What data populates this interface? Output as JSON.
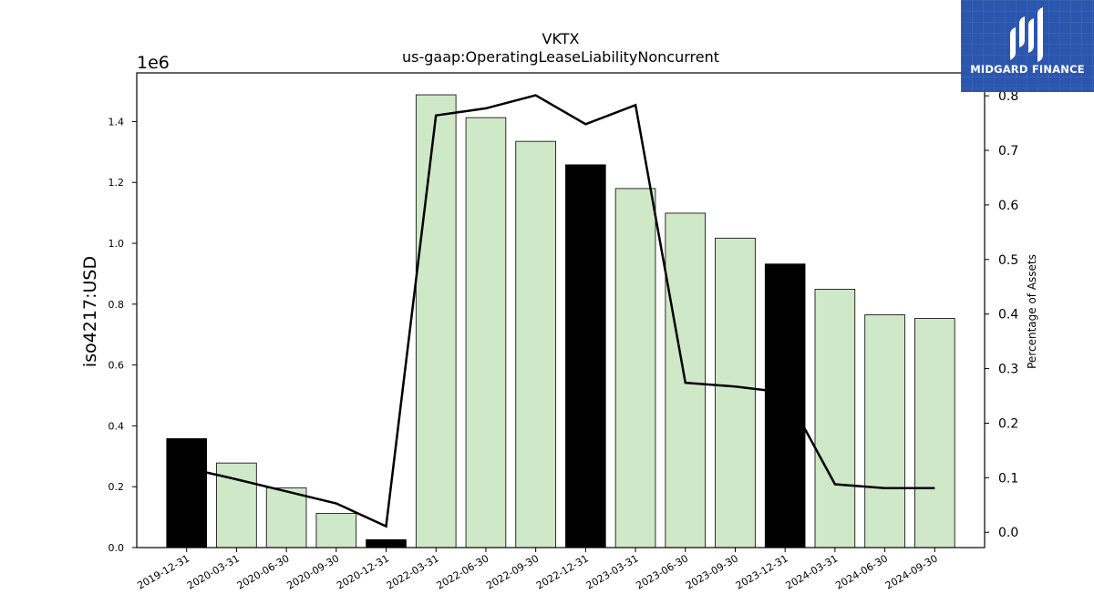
{
  "chart_data": {
    "type": "bar",
    "title": "VKTX",
    "subtitle": "us-gaap:OperatingLeaseLiabilityNoncurrent",
    "ylabel": "iso4217:USD",
    "y2label": "Percentage of Assets",
    "y_offset_label": "1e6",
    "categories": [
      "2019-12-31",
      "2020-03-31",
      "2020-06-30",
      "2020-09-30",
      "2020-12-31",
      "2022-03-31",
      "2022-06-30",
      "2022-09-30",
      "2022-12-31",
      "2023-03-31",
      "2023-06-30",
      "2023-09-30",
      "2023-12-31",
      "2024-03-31",
      "2024-06-30",
      "2024-09-30"
    ],
    "series": [
      {
        "type": "bar",
        "values": [
          358000,
          278000,
          196000,
          112000,
          26000,
          1488000,
          1413000,
          1335000,
          1258000,
          1180000,
          1099000,
          1017000,
          932000,
          849000,
          765000,
          753000
        ],
        "bar_colors": [
          "#000000",
          "#cfe8c7",
          "#cfe8c7",
          "#cfe8c7",
          "#000000",
          "#cfe8c7",
          "#cfe8c7",
          "#cfe8c7",
          "#000000",
          "#cfe8c7",
          "#cfe8c7",
          "#cfe8c7",
          "#000000",
          "#cfe8c7",
          "#cfe8c7",
          "#cfe8c7"
        ]
      },
      {
        "type": "line",
        "axis": "right",
        "values": [
          0.118,
          0.097,
          0.075,
          0.053,
          0.011,
          0.764,
          0.777,
          0.801,
          0.748,
          0.783,
          0.274,
          0.267,
          0.256,
          0.088,
          0.081,
          0.081
        ],
        "color": "#000000"
      }
    ],
    "ylim": [
      0,
      1560000
    ],
    "yticks": [
      "0.0",
      "0.2",
      "0.4",
      "0.6",
      "0.8",
      "1.0",
      "1.2",
      "1.4"
    ],
    "ytick_values": [
      0,
      200000,
      400000,
      600000,
      800000,
      1000000,
      1200000,
      1400000
    ],
    "y2lim": [
      -0.028,
      0.842
    ],
    "y2ticks": [
      "0.0",
      "0.1",
      "0.2",
      "0.3",
      "0.4",
      "0.5",
      "0.6",
      "0.7",
      "0.8"
    ],
    "y2tick_values": [
      0,
      0.1,
      0.2,
      0.3,
      0.4,
      0.5,
      0.6,
      0.7,
      0.8
    ],
    "grid": false,
    "legend": "none"
  },
  "logo": {
    "text": "MIDGARD FINANCE",
    "background": "#2b56ad"
  }
}
